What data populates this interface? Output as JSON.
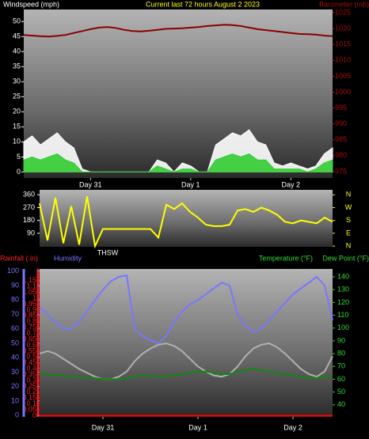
{
  "chart_data": [
    {
      "type": "line",
      "title": "Current last 72 hours August 2 2023",
      "x": [
        0,
        2,
        4,
        6,
        8,
        10,
        12,
        14,
        16,
        18,
        20,
        22,
        24,
        26,
        28,
        30,
        32,
        34,
        36,
        38,
        40,
        42,
        44,
        46,
        48,
        50,
        52,
        54,
        56,
        58,
        60,
        62,
        64,
        66,
        68,
        70,
        72,
        74
      ],
      "xlim": [
        0,
        74
      ],
      "xticks": [
        {
          "value": 16,
          "label": "Day 31"
        },
        {
          "value": 40,
          "label": "Day 1"
        },
        {
          "value": 64,
          "label": "Day 2"
        }
      ],
      "ylim": [
        -2,
        54
      ],
      "yticks": [
        0,
        5,
        10,
        15,
        20,
        25,
        30,
        35,
        40,
        45,
        50
      ],
      "ycolor": "#ffffff",
      "y2lim": [
        973,
        1026
      ],
      "y2ticks": [
        975,
        980,
        985,
        990,
        995,
        1000,
        1005,
        1010,
        1015,
        1020,
        1025
      ],
      "y2color": "#a01010",
      "series": [
        {
          "color": "#ffffff",
          "style": "area",
          "axis": "y",
          "values": [
            10,
            12,
            9,
            11,
            13,
            10,
            8,
            1,
            0,
            0,
            0,
            0,
            0,
            0,
            0,
            0,
            4,
            3,
            0,
            3,
            2,
            0,
            0,
            9,
            11,
            13,
            12,
            14,
            10,
            9,
            3,
            2,
            3,
            2,
            1,
            2,
            6,
            8
          ]
        },
        {
          "name": "Windspeed (mph)",
          "color": "#33cc33",
          "style": "area",
          "axis": "y",
          "values": [
            4,
            5,
            4,
            5,
            6,
            4,
            3,
            0,
            0,
            0,
            0,
            0,
            0,
            0,
            0,
            0,
            2,
            1,
            0,
            1,
            1,
            0,
            0,
            4,
            5,
            6,
            5,
            6,
            4,
            4,
            1,
            1,
            1,
            1,
            0,
            1,
            3,
            4
          ]
        },
        {
          "name": "Barometer (mb)",
          "color": "#8b0000",
          "style": "line",
          "axis": "y2",
          "values": [
            1018,
            1017.8,
            1017.6,
            1017.5,
            1017.7,
            1018,
            1018.6,
            1019.2,
            1019.8,
            1020.3,
            1020.5,
            1020.2,
            1019.6,
            1019.2,
            1019.1,
            1019.3,
            1019.6,
            1019.9,
            1020,
            1020.1,
            1020.3,
            1020.5,
            1020.8,
            1021,
            1021.2,
            1021.1,
            1020.8,
            1020.3,
            1019.8,
            1019.5,
            1019.2,
            1018.9,
            1018.6,
            1018.3,
            1018.2,
            1018.1,
            1017.8,
            1017.6
          ]
        }
      ]
    },
    {
      "type": "line",
      "annotation": "THSW",
      "x": [
        0,
        2,
        4,
        6,
        8,
        10,
        12,
        14,
        16,
        18,
        20,
        22,
        24,
        26,
        28,
        30,
        32,
        34,
        36,
        38,
        40,
        42,
        44,
        46,
        48,
        50,
        52,
        54,
        56,
        58,
        60,
        62,
        64,
        66,
        68,
        70,
        72,
        74
      ],
      "xlim": [
        0,
        74
      ],
      "ylim": [
        -5,
        395
      ],
      "yticks": [
        90,
        180,
        270,
        360
      ],
      "ycolor": "#ffffff",
      "y2lim": [
        -5,
        395
      ],
      "y2ticks": [
        {
          "value": 0,
          "label": "N"
        },
        {
          "value": 90,
          "label": "E"
        },
        {
          "value": 180,
          "label": "S"
        },
        {
          "value": 270,
          "label": "W"
        },
        {
          "value": 360,
          "label": "N"
        }
      ],
      "y2color": "#ffff00",
      "series": [
        {
          "color": "#ffff00",
          "style": "line",
          "axis": "y",
          "values": [
            300,
            40,
            340,
            20,
            280,
            10,
            350,
            0,
            120,
            120,
            120,
            120,
            120,
            120,
            120,
            60,
            290,
            260,
            300,
            240,
            200,
            150,
            140,
            140,
            150,
            250,
            260,
            240,
            270,
            250,
            220,
            170,
            160,
            180,
            170,
            160,
            200,
            170
          ]
        }
      ]
    },
    {
      "type": "line",
      "x": [
        0,
        2,
        4,
        6,
        8,
        10,
        12,
        14,
        16,
        18,
        20,
        22,
        24,
        26,
        28,
        30,
        32,
        34,
        36,
        38,
        40,
        42,
        44,
        46,
        48,
        50,
        52,
        54,
        56,
        58,
        60,
        62,
        64,
        66,
        68,
        70,
        72,
        74
      ],
      "xlim": [
        0,
        74
      ],
      "xticks": [
        {
          "value": 16,
          "label": "Day 31"
        },
        {
          "value": 40,
          "label": "Day 1"
        },
        {
          "value": 64,
          "label": "Day 2"
        }
      ],
      "ylim": [
        -0.01,
        1.25
      ],
      "yticks": [
        0,
        0.05,
        0.1,
        0.15,
        0.2,
        0.25,
        0.3,
        0.35,
        0.4,
        0.45,
        0.5,
        0.55,
        0.6,
        0.65,
        0.7,
        0.75,
        0.8,
        0.85,
        0.9,
        0.95,
        1,
        1.05,
        1.1,
        1.15
      ],
      "ycolor": "#ff2020",
      "y2lim": [
        30.6,
        146.2
      ],
      "y2ticks": [
        40,
        50,
        60,
        70,
        80,
        90,
        100,
        110,
        120,
        130,
        140
      ],
      "y2color": "#33dd33",
      "y3lim": [
        -1,
        101.5
      ],
      "y3ticks": [
        0,
        10,
        20,
        30,
        40,
        50,
        60,
        70,
        80,
        90,
        100
      ],
      "y3color": "#7777ff",
      "series": [
        {
          "name": "Rainfall (.in)",
          "color": "#ff0000",
          "style": "line",
          "axis": "y",
          "values": [
            0,
            0,
            0,
            0,
            0,
            0,
            0,
            0,
            0,
            0,
            0,
            0,
            0,
            0,
            0,
            0,
            0,
            0,
            0,
            0,
            0,
            0,
            0,
            0,
            0,
            0,
            0,
            0,
            0,
            0,
            0,
            0,
            0,
            0,
            0,
            0,
            0,
            0
          ]
        },
        {
          "name": "Humidity",
          "color": "#7777ff",
          "style": "line",
          "axis": "y3",
          "values": [
            75,
            70,
            65,
            60,
            60,
            65,
            72,
            80,
            87,
            93,
            96,
            97,
            60,
            55,
            52,
            50,
            55,
            65,
            72,
            77,
            80,
            84,
            88,
            92,
            90,
            70,
            62,
            58,
            60,
            66,
            72,
            78,
            84,
            88,
            92,
            96,
            90,
            66
          ]
        },
        {
          "name": "Temperature (°F)",
          "color": "#b0b0b0",
          "style": "line",
          "axis": "y2",
          "values": [
            80,
            82,
            80,
            76,
            72,
            68,
            65,
            62,
            60,
            60,
            62,
            66,
            74,
            80,
            84,
            87,
            88,
            86,
            82,
            76,
            70,
            66,
            63,
            62,
            64,
            70,
            78,
            84,
            87,
            88,
            85,
            80,
            74,
            68,
            64,
            62,
            66,
            78
          ]
        },
        {
          "name": "Dew Point (°F)",
          "color": "#118811",
          "style": "line",
          "axis": "y2",
          "values": [
            65,
            64,
            63,
            63,
            62,
            62,
            61,
            61,
            60,
            60,
            60,
            61,
            62,
            63,
            63,
            62,
            62,
            63,
            64,
            65,
            66,
            66,
            65,
            64,
            64,
            66,
            67,
            68,
            67,
            66,
            65,
            64,
            63,
            62,
            61,
            61,
            62,
            63
          ]
        }
      ]
    }
  ]
}
